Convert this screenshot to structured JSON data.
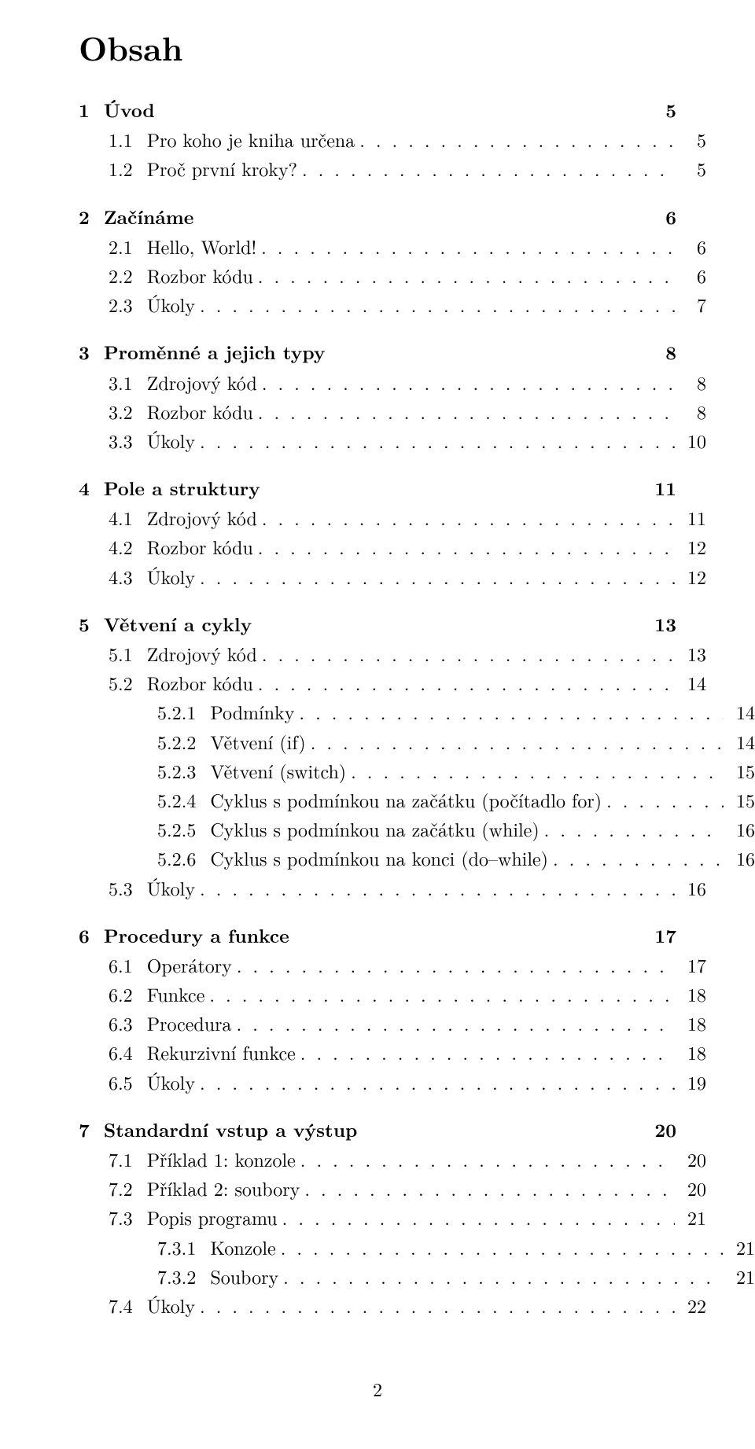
{
  "title": "Obsah",
  "footer_page": "2",
  "chapters": [
    {
      "num": "1",
      "label": "Úvod",
      "page": "5",
      "sections": [
        {
          "num": "1.1",
          "label": "Pro koho je kniha určena",
          "page": "5"
        },
        {
          "num": "1.2",
          "label": "Proč první kroky?",
          "page": "5"
        }
      ]
    },
    {
      "num": "2",
      "label": "Začínáme",
      "page": "6",
      "sections": [
        {
          "num": "2.1",
          "label": "Hello, World!",
          "page": "6"
        },
        {
          "num": "2.2",
          "label": "Rozbor kódu",
          "page": "6"
        },
        {
          "num": "2.3",
          "label": "Úkoly",
          "page": "7"
        }
      ]
    },
    {
      "num": "3",
      "label": "Proměnné a jejich typy",
      "page": "8",
      "sections": [
        {
          "num": "3.1",
          "label": "Zdrojový kód",
          "page": "8"
        },
        {
          "num": "3.2",
          "label": "Rozbor kódu",
          "page": "8"
        },
        {
          "num": "3.3",
          "label": "Úkoly",
          "page": "10"
        }
      ]
    },
    {
      "num": "4",
      "label": "Pole a struktury",
      "page": "11",
      "sections": [
        {
          "num": "4.1",
          "label": "Zdrojový kód",
          "page": "11"
        },
        {
          "num": "4.2",
          "label": "Rozbor kódu",
          "page": "12"
        },
        {
          "num": "4.3",
          "label": "Úkoly",
          "page": "12"
        }
      ]
    },
    {
      "num": "5",
      "label": "Větvení a cykly",
      "page": "13",
      "sections": [
        {
          "num": "5.1",
          "label": "Zdrojový kód",
          "page": "13"
        },
        {
          "num": "5.2",
          "label": "Rozbor kódu",
          "page": "14",
          "subsections": [
            {
              "num": "5.2.1",
              "label": "Podmínky",
              "page": "14"
            },
            {
              "num": "5.2.2",
              "label": "Větvení (if)",
              "page": "14"
            },
            {
              "num": "5.2.3",
              "label": "Větvení (switch)",
              "page": "15"
            },
            {
              "num": "5.2.4",
              "label": "Cyklus s podmínkou na začátku (počítadlo for)",
              "page": "15"
            },
            {
              "num": "5.2.5",
              "label": "Cyklus s podmínkou na začátku (while)",
              "page": "16"
            },
            {
              "num": "5.2.6",
              "label": "Cyklus s podmínkou na konci (do–while)",
              "page": "16"
            }
          ]
        },
        {
          "num": "5.3",
          "label": "Úkoly",
          "page": "16"
        }
      ]
    },
    {
      "num": "6",
      "label": "Procedury a funkce",
      "page": "17",
      "sections": [
        {
          "num": "6.1",
          "label": "Operátory",
          "page": "17"
        },
        {
          "num": "6.2",
          "label": "Funkce",
          "page": "18"
        },
        {
          "num": "6.3",
          "label": "Procedura",
          "page": "18"
        },
        {
          "num": "6.4",
          "label": "Rekurzivní funkce",
          "page": "18"
        },
        {
          "num": "6.5",
          "label": "Úkoly",
          "page": "19"
        }
      ]
    },
    {
      "num": "7",
      "label": "Standardní vstup a výstup",
      "page": "20",
      "sections": [
        {
          "num": "7.1",
          "label": "Příklad 1: konzole",
          "page": "20"
        },
        {
          "num": "7.2",
          "label": "Příklad 2: soubory",
          "page": "20"
        },
        {
          "num": "7.3",
          "label": "Popis programu",
          "page": "21",
          "subsections": [
            {
              "num": "7.3.1",
              "label": "Konzole",
              "page": "21"
            },
            {
              "num": "7.3.2",
              "label": "Soubory",
              "page": "21"
            }
          ]
        },
        {
          "num": "7.4",
          "label": "Úkoly",
          "page": "22"
        }
      ]
    }
  ]
}
